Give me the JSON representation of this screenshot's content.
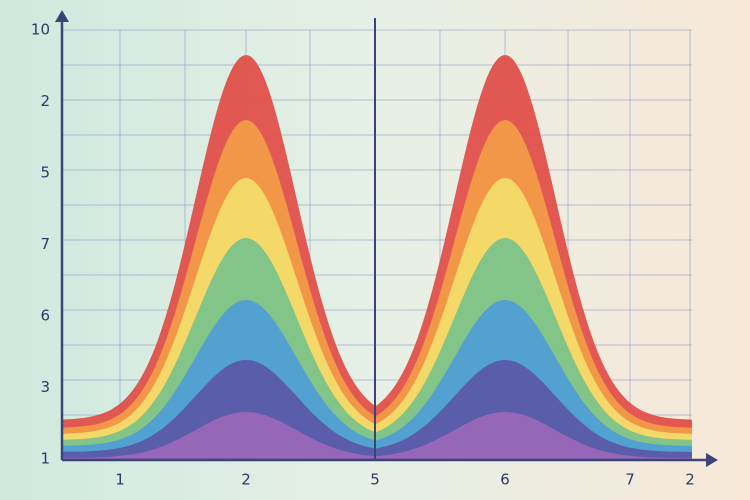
{
  "y_axis_labels": [
    "10",
    "2",
    "5",
    "7",
    "6",
    "3",
    "1"
  ],
  "x_axis_labels": [
    "1",
    "2",
    "5",
    "6",
    "7",
    "2"
  ]
}
